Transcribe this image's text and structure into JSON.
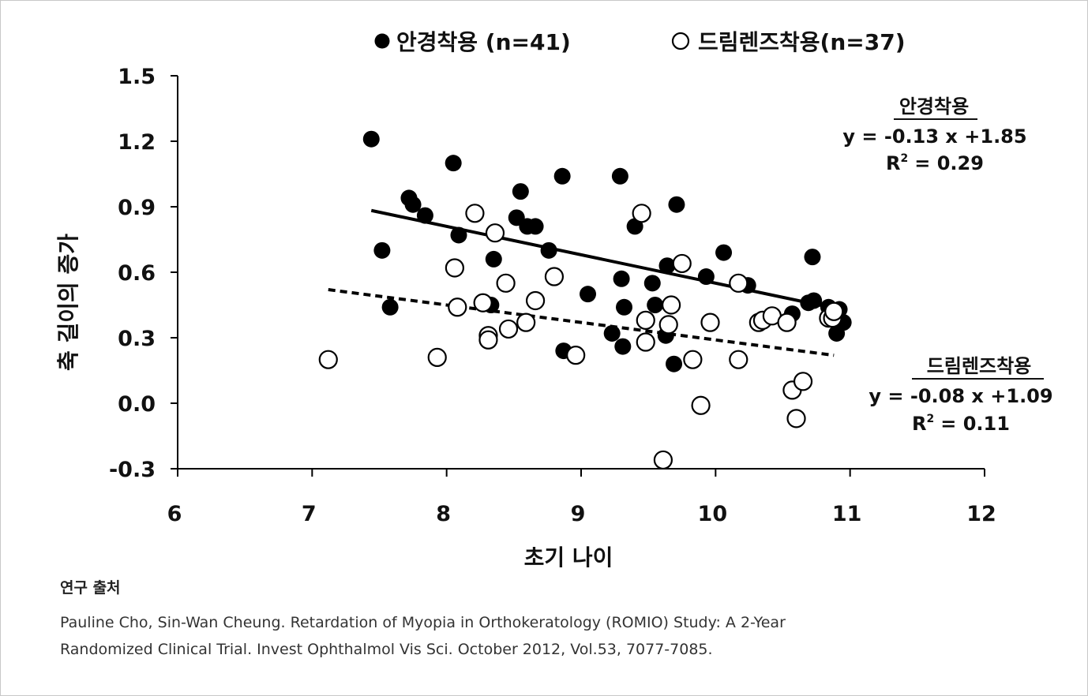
{
  "chart_data": {
    "type": "scatter",
    "xlabel": "초기 나이",
    "ylabel": "축 길이의 증가",
    "xlim": [
      6,
      12
    ],
    "ylim": [
      -0.3,
      1.5
    ],
    "x_ticks": [
      "6",
      "7",
      "8",
      "9",
      "10",
      "11",
      "12"
    ],
    "y_ticks": [
      "1.5",
      "1.2",
      "0.9",
      "0.6",
      "0.3",
      "0.0",
      "-0.3"
    ],
    "grid": false,
    "legend_position": "top",
    "series": [
      {
        "name": "안경착용 (n=41)",
        "marker": "filled-circle",
        "color": "#000000",
        "points": [
          [
            7.44,
            1.21
          ],
          [
            7.52,
            0.7
          ],
          [
            7.58,
            0.44
          ],
          [
            7.72,
            0.94
          ],
          [
            7.75,
            0.91
          ],
          [
            7.84,
            0.86
          ],
          [
            8.05,
            1.1
          ],
          [
            8.09,
            0.77
          ],
          [
            8.33,
            0.45
          ],
          [
            8.35,
            0.66
          ],
          [
            8.52,
            0.85
          ],
          [
            8.55,
            0.97
          ],
          [
            8.6,
            0.81
          ],
          [
            8.66,
            0.81
          ],
          [
            8.76,
            0.7
          ],
          [
            8.86,
            1.04
          ],
          [
            8.87,
            0.24
          ],
          [
            9.05,
            0.5
          ],
          [
            9.23,
            0.32
          ],
          [
            9.29,
            1.04
          ],
          [
            9.3,
            0.57
          ],
          [
            9.31,
            0.26
          ],
          [
            9.32,
            0.44
          ],
          [
            9.4,
            0.81
          ],
          [
            9.53,
            0.55
          ],
          [
            9.55,
            0.45
          ],
          [
            9.63,
            0.31
          ],
          [
            9.64,
            0.63
          ],
          [
            9.69,
            0.18
          ],
          [
            9.71,
            0.91
          ],
          [
            9.93,
            0.58
          ],
          [
            10.06,
            0.69
          ],
          [
            10.24,
            0.54
          ],
          [
            10.57,
            0.41
          ],
          [
            10.69,
            0.46
          ],
          [
            10.72,
            0.67
          ],
          [
            10.73,
            0.47
          ],
          [
            10.84,
            0.44
          ],
          [
            10.9,
            0.32
          ],
          [
            10.92,
            0.43
          ],
          [
            10.95,
            0.37
          ]
        ],
        "trend": {
          "x": [
            7.44,
            10.95
          ],
          "equation_title": "안경착용",
          "equation": "y = -0.13 x +1.85",
          "r2_label": "R",
          "r2_sup": "2",
          "r2_value": "= 0.29",
          "style": "solid",
          "slope": -0.13,
          "intercept": 1.85
        }
      },
      {
        "name": "드림렌즈착용(n=37)",
        "marker": "open-circle",
        "color": "#000000",
        "points": [
          [
            7.12,
            0.2
          ],
          [
            7.93,
            0.21
          ],
          [
            8.06,
            0.62
          ],
          [
            8.08,
            0.44
          ],
          [
            8.21,
            0.87
          ],
          [
            8.27,
            0.46
          ],
          [
            8.31,
            0.31
          ],
          [
            8.31,
            0.29
          ],
          [
            8.36,
            0.78
          ],
          [
            8.44,
            0.55
          ],
          [
            8.46,
            0.34
          ],
          [
            8.59,
            0.37
          ],
          [
            8.66,
            0.47
          ],
          [
            8.8,
            0.58
          ],
          [
            8.96,
            0.22
          ],
          [
            9.45,
            0.87
          ],
          [
            9.48,
            0.38
          ],
          [
            9.48,
            0.28
          ],
          [
            9.61,
            -0.26
          ],
          [
            9.65,
            0.36
          ],
          [
            9.67,
            0.45
          ],
          [
            9.75,
            0.64
          ],
          [
            9.83,
            0.2
          ],
          [
            9.89,
            -0.01
          ],
          [
            9.96,
            0.37
          ],
          [
            10.17,
            0.2
          ],
          [
            10.17,
            0.55
          ],
          [
            10.32,
            0.37
          ],
          [
            10.35,
            0.38
          ],
          [
            10.42,
            0.4
          ],
          [
            10.53,
            0.37
          ],
          [
            10.57,
            0.06
          ],
          [
            10.6,
            -0.07
          ],
          [
            10.65,
            0.1
          ],
          [
            10.84,
            0.39
          ],
          [
            10.87,
            0.39
          ],
          [
            10.88,
            0.42
          ]
        ],
        "trend": {
          "x": [
            7.12,
            10.88
          ],
          "equation_title": "드림렌즈착용",
          "equation": "y = -0.08 x +1.09",
          "r2_label": "R",
          "r2_sup": "2",
          "r2_value": "= 0.11",
          "style": "dashed",
          "slope": -0.08,
          "intercept": 1.09
        }
      }
    ]
  },
  "source": {
    "title": "연구 출처",
    "line1": "Pauline Cho, Sin-Wan Cheung. Retardation of Myopia in Orthokeratology (ROMIO) Study: A 2-Year",
    "line2": "Randomized Clinical Trial. Invest Ophthalmol Vis Sci. October 2012, Vol.53, 7077-7085."
  }
}
